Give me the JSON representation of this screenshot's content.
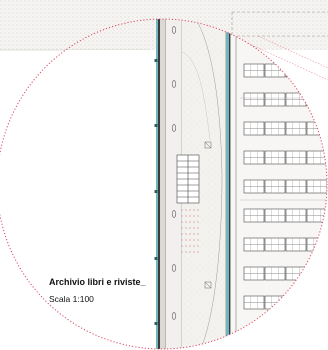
{
  "drawing": {
    "title": "Archivio libri e riviste_",
    "scale": "Scala 1:100"
  },
  "colors": {
    "frame_circle": "#d8485f",
    "wall_cyan": "#6fb6bf",
    "poche": "#e8e4df",
    "hatch_paper": "#f2f0ee",
    "floor": "#f7f5f3",
    "linework": "#555555"
  },
  "shelving": {
    "rows": 9,
    "cols": 4
  }
}
